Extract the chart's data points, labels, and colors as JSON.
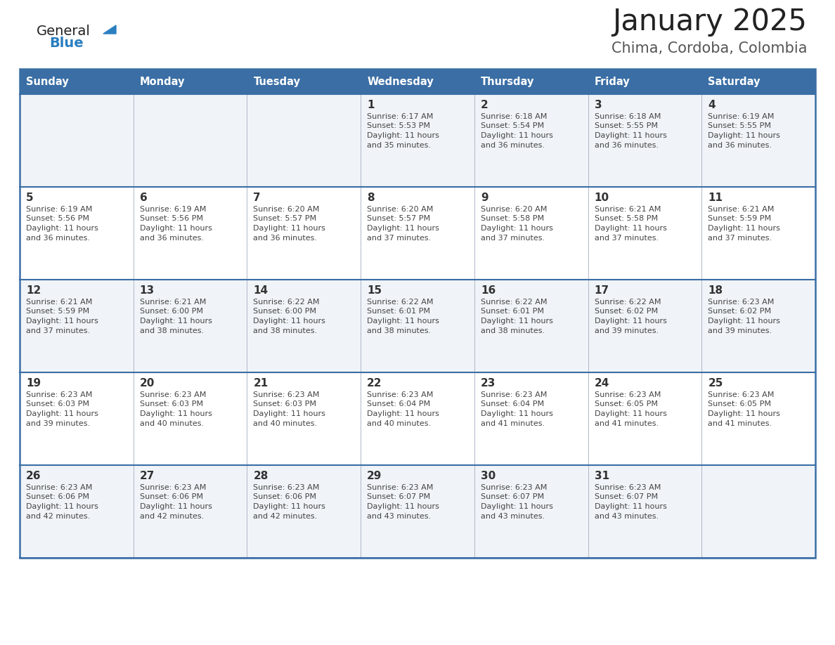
{
  "title": "January 2025",
  "subtitle": "Chima, Cordoba, Colombia",
  "header_bg": "#3a6ea5",
  "header_text": "#ffffff",
  "cell_bg_odd": "#f0f4f8",
  "cell_bg_even": "#ffffff",
  "day_names": [
    "Sunday",
    "Monday",
    "Tuesday",
    "Wednesday",
    "Thursday",
    "Friday",
    "Saturday"
  ],
  "border_color": "#3a6ea5",
  "divider_color": "#3a6ea5",
  "text_color": "#444444",
  "day_num_color": "#333333",
  "logo_general_color": "#222222",
  "logo_blue_color": "#2a7fc1",
  "logo_triangle_color": "#2a7fc1",
  "title_color": "#222222",
  "subtitle_color": "#555555",
  "weeks": [
    [
      {
        "date": "",
        "sunrise": "",
        "sunset": "",
        "daylight_h": "",
        "daylight_m": ""
      },
      {
        "date": "",
        "sunrise": "",
        "sunset": "",
        "daylight_h": "",
        "daylight_m": ""
      },
      {
        "date": "",
        "sunrise": "",
        "sunset": "",
        "daylight_h": "",
        "daylight_m": ""
      },
      {
        "date": "1",
        "sunrise": "6:17 AM",
        "sunset": "5:53 PM",
        "daylight_h": "11 hours",
        "daylight_m": "and 35 minutes."
      },
      {
        "date": "2",
        "sunrise": "6:18 AM",
        "sunset": "5:54 PM",
        "daylight_h": "11 hours",
        "daylight_m": "and 36 minutes."
      },
      {
        "date": "3",
        "sunrise": "6:18 AM",
        "sunset": "5:55 PM",
        "daylight_h": "11 hours",
        "daylight_m": "and 36 minutes."
      },
      {
        "date": "4",
        "sunrise": "6:19 AM",
        "sunset": "5:55 PM",
        "daylight_h": "11 hours",
        "daylight_m": "and 36 minutes."
      }
    ],
    [
      {
        "date": "5",
        "sunrise": "6:19 AM",
        "sunset": "5:56 PM",
        "daylight_h": "11 hours",
        "daylight_m": "and 36 minutes."
      },
      {
        "date": "6",
        "sunrise": "6:19 AM",
        "sunset": "5:56 PM",
        "daylight_h": "11 hours",
        "daylight_m": "and 36 minutes."
      },
      {
        "date": "7",
        "sunrise": "6:20 AM",
        "sunset": "5:57 PM",
        "daylight_h": "11 hours",
        "daylight_m": "and 36 minutes."
      },
      {
        "date": "8",
        "sunrise": "6:20 AM",
        "sunset": "5:57 PM",
        "daylight_h": "11 hours",
        "daylight_m": "and 37 minutes."
      },
      {
        "date": "9",
        "sunrise": "6:20 AM",
        "sunset": "5:58 PM",
        "daylight_h": "11 hours",
        "daylight_m": "and 37 minutes."
      },
      {
        "date": "10",
        "sunrise": "6:21 AM",
        "sunset": "5:58 PM",
        "daylight_h": "11 hours",
        "daylight_m": "and 37 minutes."
      },
      {
        "date": "11",
        "sunrise": "6:21 AM",
        "sunset": "5:59 PM",
        "daylight_h": "11 hours",
        "daylight_m": "and 37 minutes."
      }
    ],
    [
      {
        "date": "12",
        "sunrise": "6:21 AM",
        "sunset": "5:59 PM",
        "daylight_h": "11 hours",
        "daylight_m": "and 37 minutes."
      },
      {
        "date": "13",
        "sunrise": "6:21 AM",
        "sunset": "6:00 PM",
        "daylight_h": "11 hours",
        "daylight_m": "and 38 minutes."
      },
      {
        "date": "14",
        "sunrise": "6:22 AM",
        "sunset": "6:00 PM",
        "daylight_h": "11 hours",
        "daylight_m": "and 38 minutes."
      },
      {
        "date": "15",
        "sunrise": "6:22 AM",
        "sunset": "6:01 PM",
        "daylight_h": "11 hours",
        "daylight_m": "and 38 minutes."
      },
      {
        "date": "16",
        "sunrise": "6:22 AM",
        "sunset": "6:01 PM",
        "daylight_h": "11 hours",
        "daylight_m": "and 38 minutes."
      },
      {
        "date": "17",
        "sunrise": "6:22 AM",
        "sunset": "6:02 PM",
        "daylight_h": "11 hours",
        "daylight_m": "and 39 minutes."
      },
      {
        "date": "18",
        "sunrise": "6:23 AM",
        "sunset": "6:02 PM",
        "daylight_h": "11 hours",
        "daylight_m": "and 39 minutes."
      }
    ],
    [
      {
        "date": "19",
        "sunrise": "6:23 AM",
        "sunset": "6:03 PM",
        "daylight_h": "11 hours",
        "daylight_m": "and 39 minutes."
      },
      {
        "date": "20",
        "sunrise": "6:23 AM",
        "sunset": "6:03 PM",
        "daylight_h": "11 hours",
        "daylight_m": "and 40 minutes."
      },
      {
        "date": "21",
        "sunrise": "6:23 AM",
        "sunset": "6:03 PM",
        "daylight_h": "11 hours",
        "daylight_m": "and 40 minutes."
      },
      {
        "date": "22",
        "sunrise": "6:23 AM",
        "sunset": "6:04 PM",
        "daylight_h": "11 hours",
        "daylight_m": "and 40 minutes."
      },
      {
        "date": "23",
        "sunrise": "6:23 AM",
        "sunset": "6:04 PM",
        "daylight_h": "11 hours",
        "daylight_m": "and 41 minutes."
      },
      {
        "date": "24",
        "sunrise": "6:23 AM",
        "sunset": "6:05 PM",
        "daylight_h": "11 hours",
        "daylight_m": "and 41 minutes."
      },
      {
        "date": "25",
        "sunrise": "6:23 AM",
        "sunset": "6:05 PM",
        "daylight_h": "11 hours",
        "daylight_m": "and 41 minutes."
      }
    ],
    [
      {
        "date": "26",
        "sunrise": "6:23 AM",
        "sunset": "6:06 PM",
        "daylight_h": "11 hours",
        "daylight_m": "and 42 minutes."
      },
      {
        "date": "27",
        "sunrise": "6:23 AM",
        "sunset": "6:06 PM",
        "daylight_h": "11 hours",
        "daylight_m": "and 42 minutes."
      },
      {
        "date": "28",
        "sunrise": "6:23 AM",
        "sunset": "6:06 PM",
        "daylight_h": "11 hours",
        "daylight_m": "and 42 minutes."
      },
      {
        "date": "29",
        "sunrise": "6:23 AM",
        "sunset": "6:07 PM",
        "daylight_h": "11 hours",
        "daylight_m": "and 43 minutes."
      },
      {
        "date": "30",
        "sunrise": "6:23 AM",
        "sunset": "6:07 PM",
        "daylight_h": "11 hours",
        "daylight_m": "and 43 minutes."
      },
      {
        "date": "31",
        "sunrise": "6:23 AM",
        "sunset": "6:07 PM",
        "daylight_h": "11 hours",
        "daylight_m": "and 43 minutes."
      },
      {
        "date": "",
        "sunrise": "",
        "sunset": "",
        "daylight_h": "",
        "daylight_m": ""
      }
    ]
  ]
}
